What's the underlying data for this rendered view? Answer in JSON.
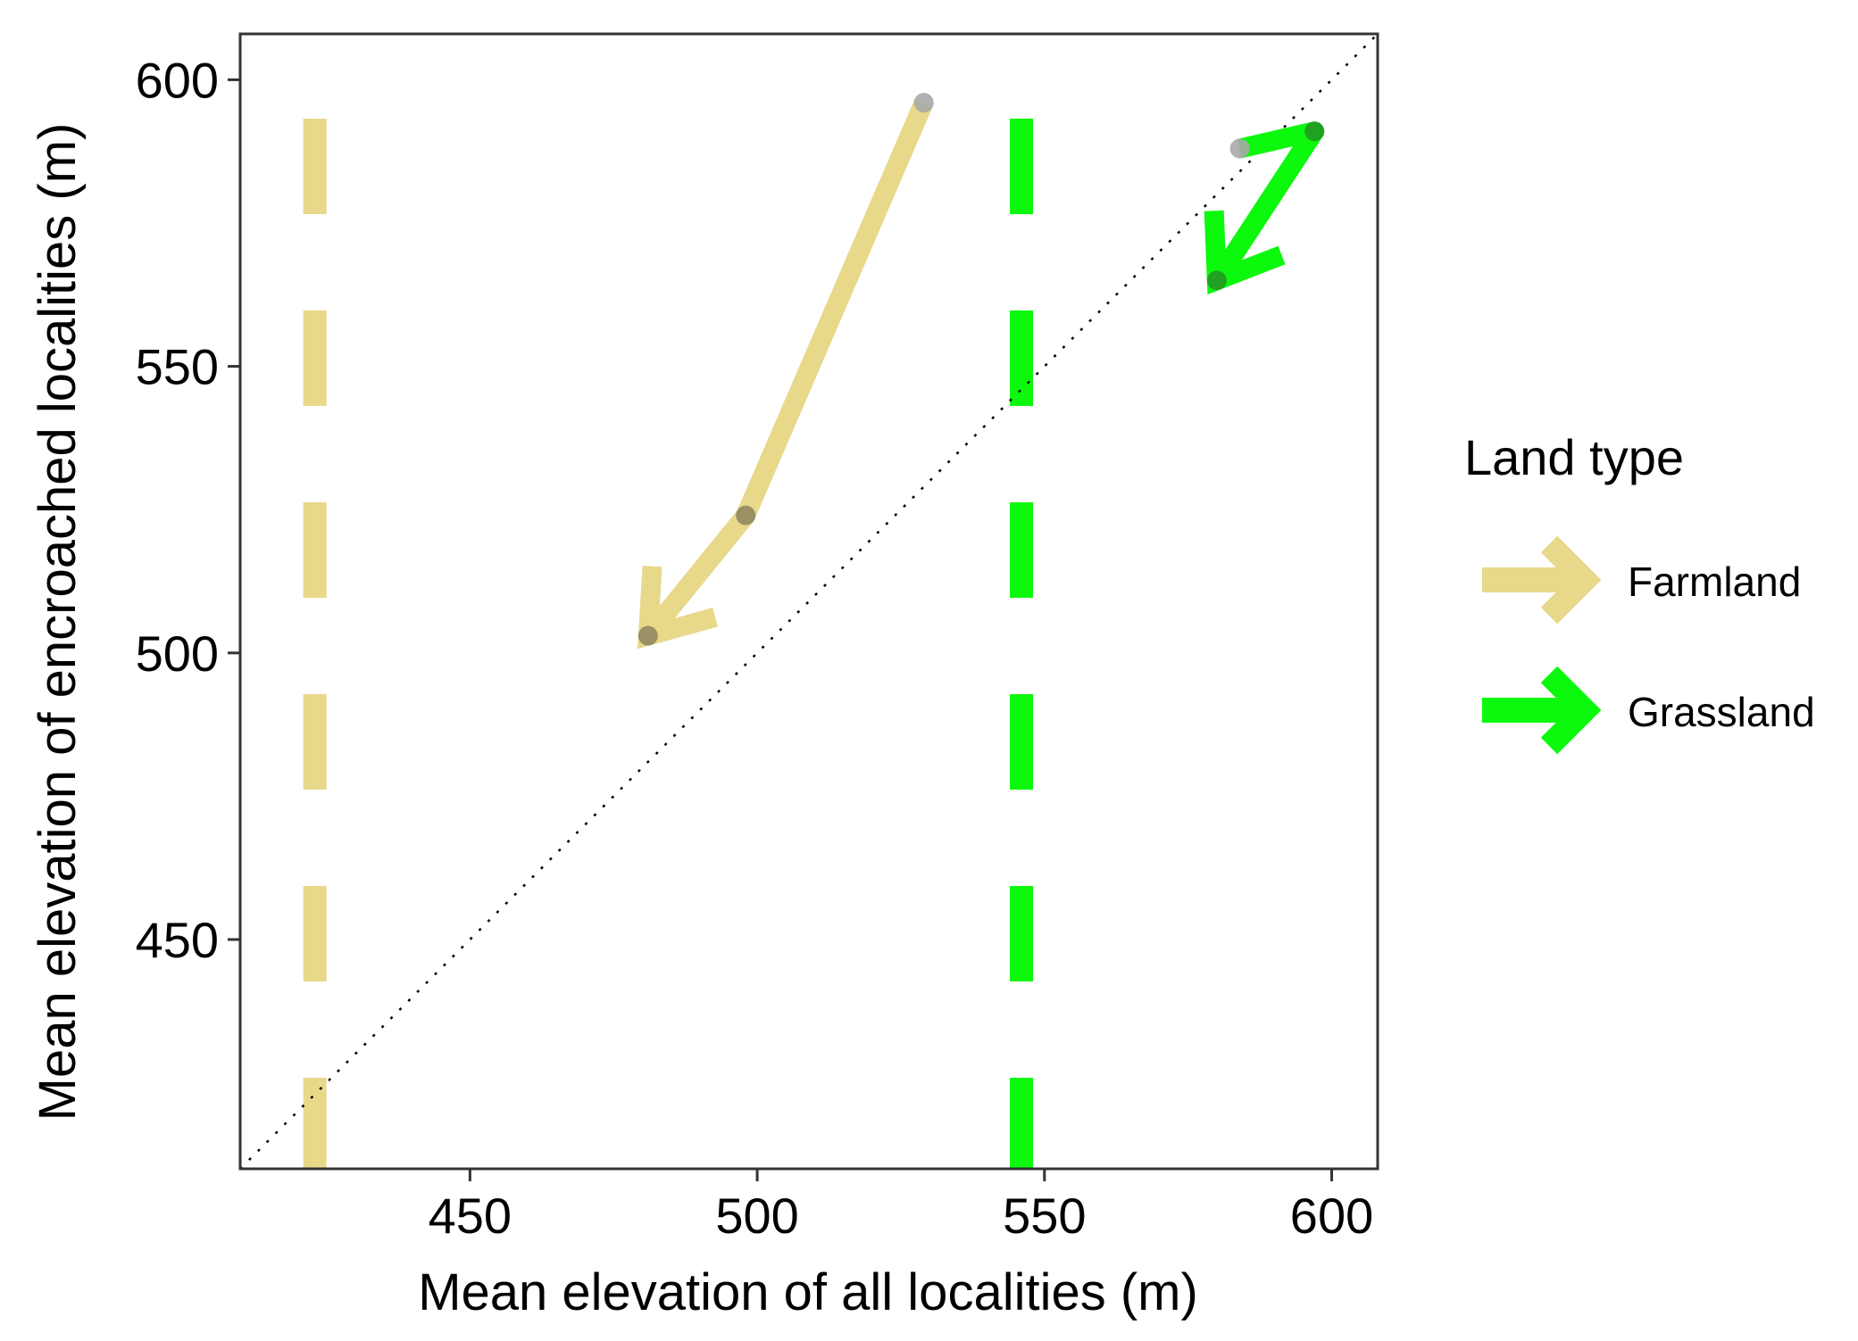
{
  "chart_data": {
    "type": "line",
    "xlabel": "Mean elevation of all localities (m)",
    "ylabel": "Mean elevation of encroached localities (m)",
    "xlim": [
      410,
      608
    ],
    "ylim": [
      410,
      608
    ],
    "x_ticks": [
      450,
      500,
      550,
      600
    ],
    "y_ticks": [
      450,
      500,
      550,
      600
    ],
    "reference_line": {
      "type": "identity",
      "style": "dotted"
    },
    "legend": {
      "title": "Land type",
      "position": "right",
      "entries": [
        {
          "label": "Farmland",
          "color": "#E8D88A"
        },
        {
          "label": "Grassland",
          "color": "#0CF80C"
        }
      ]
    },
    "series": [
      {
        "name": "Farmland",
        "color": "#E8D88A",
        "style": "arrow",
        "points": [
          {
            "x": 529,
            "y": 596
          },
          {
            "x": 498,
            "y": 524
          },
          {
            "x": 481,
            "y": 503
          }
        ],
        "vertical_line_x": 423
      },
      {
        "name": "Grassland",
        "color": "#0CF80C",
        "style": "arrow",
        "points": [
          {
            "x": 584,
            "y": 588
          },
          {
            "x": 597,
            "y": 591
          },
          {
            "x": 580,
            "y": 565
          }
        ],
        "vertical_line_x": 546
      }
    ]
  }
}
